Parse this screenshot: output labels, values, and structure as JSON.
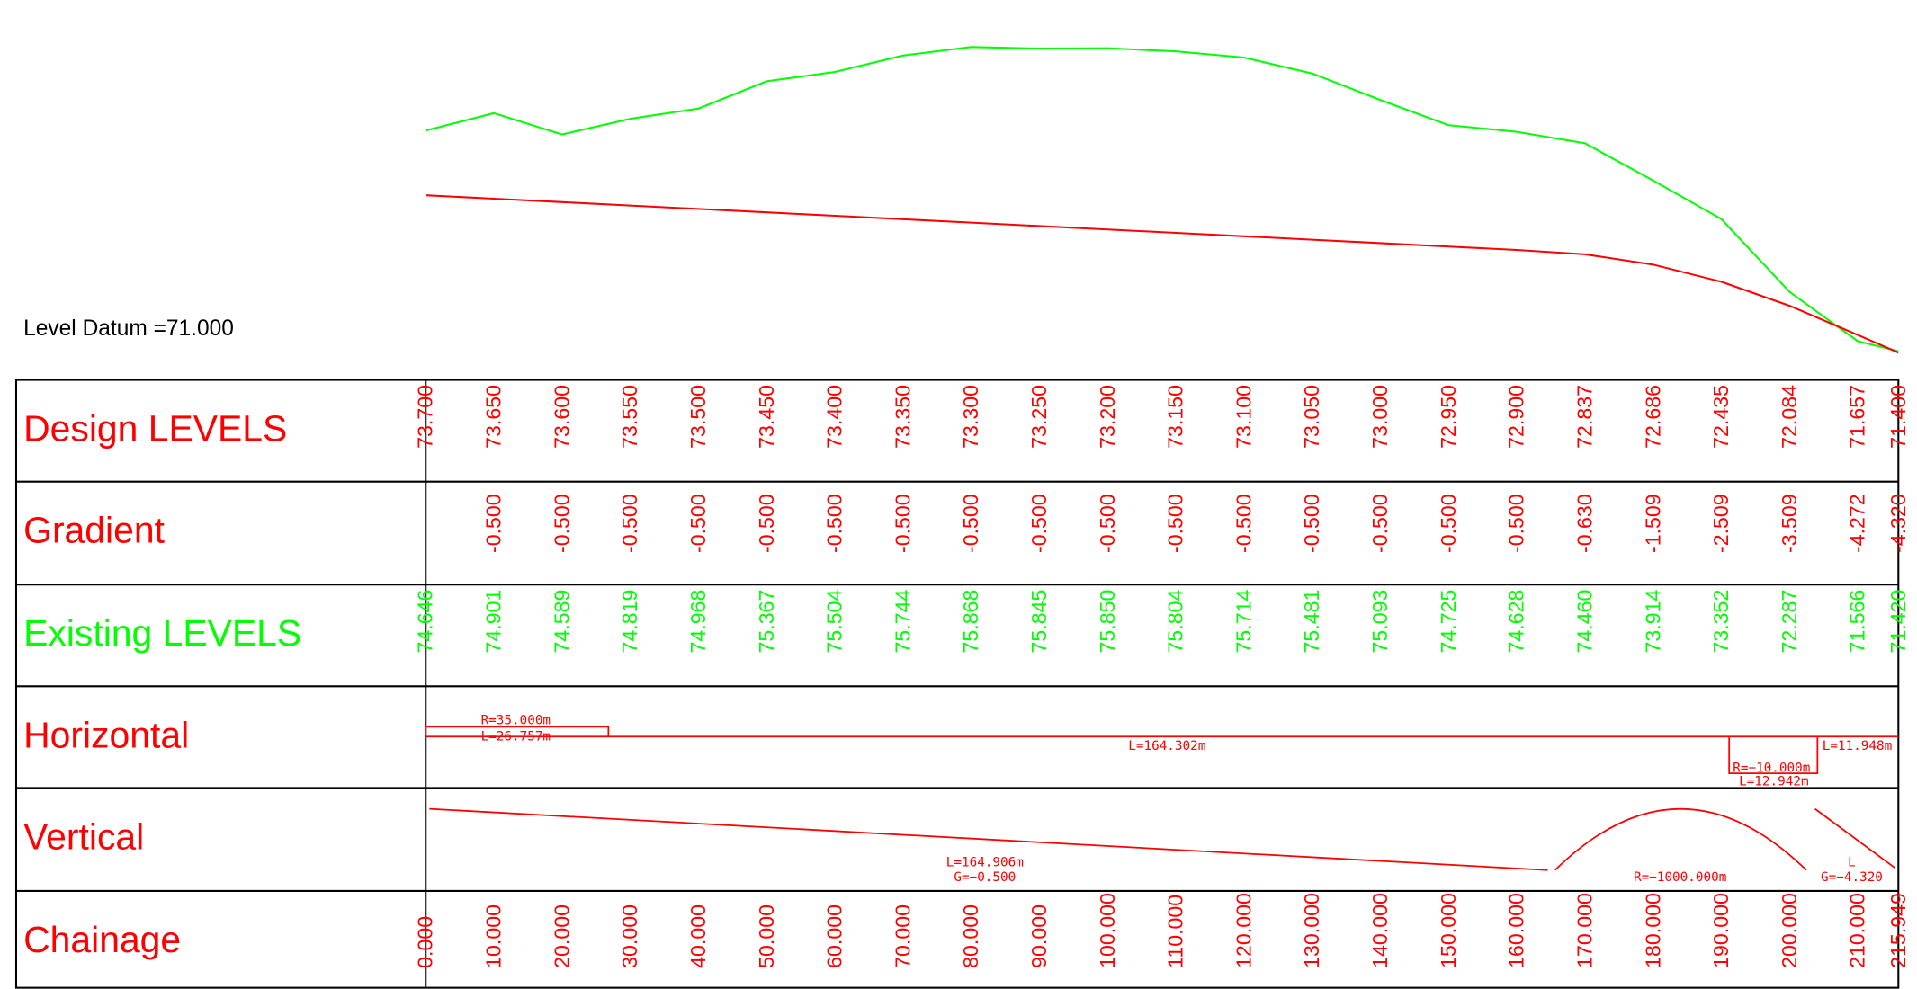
{
  "datum_label": "Level Datum =71.000",
  "rows": {
    "design": {
      "label": "Design LEVELS",
      "values": [
        "73.700",
        "73.650",
        "73.600",
        "73.550",
        "73.500",
        "73.450",
        "73.400",
        "73.350",
        "73.300",
        "73.250",
        "73.200",
        "73.150",
        "73.100",
        "73.050",
        "73.000",
        "72.950",
        "72.900",
        "72.837",
        "72.686",
        "72.435",
        "72.084",
        "71.657",
        "71.400"
      ]
    },
    "gradient": {
      "label": "Gradient",
      "values": [
        "-0.500",
        "-0.500",
        "-0.500",
        "-0.500",
        "-0.500",
        "-0.500",
        "-0.500",
        "-0.500",
        "-0.500",
        "-0.500",
        "-0.500",
        "-0.500",
        "-0.500",
        "-0.500",
        "-0.500",
        "-0.500",
        "-0.630",
        "-1.509",
        "-2.509",
        "-3.509",
        "-4.272",
        "-4.320"
      ]
    },
    "existing": {
      "label": "Existing LEVELS",
      "values": [
        "74.646",
        "74.901",
        "74.589",
        "74.819",
        "74.968",
        "75.367",
        "75.504",
        "75.744",
        "75.868",
        "75.845",
        "75.850",
        "75.804",
        "75.714",
        "75.481",
        "75.093",
        "74.725",
        "74.628",
        "74.460",
        "73.914",
        "73.352",
        "72.287",
        "71.566",
        "71.420"
      ]
    },
    "horizontal": {
      "label": "Horizontal",
      "annotations": [
        "R=35.000m",
        "L=26.757m",
        "L=164.302m",
        "R=−10.000m",
        "L=12.942m",
        "L=11.948m"
      ]
    },
    "vertical": {
      "label": "Vertical",
      "annotations": [
        "L=164.906m",
        "G=−0.500",
        "R=−1000.000m",
        "L",
        "G=−4.320"
      ]
    },
    "chainage": {
      "label": "Chainage",
      "values": [
        "0.000",
        "10.000",
        "20.000",
        "30.000",
        "40.000",
        "50.000",
        "60.000",
        "70.000",
        "80.000",
        "90.000",
        "100.000",
        "110.000",
        "120.000",
        "130.000",
        "140.000",
        "150.000",
        "160.000",
        "170.000",
        "180.000",
        "190.000",
        "200.000",
        "210.000",
        "215.949"
      ]
    }
  }
}
